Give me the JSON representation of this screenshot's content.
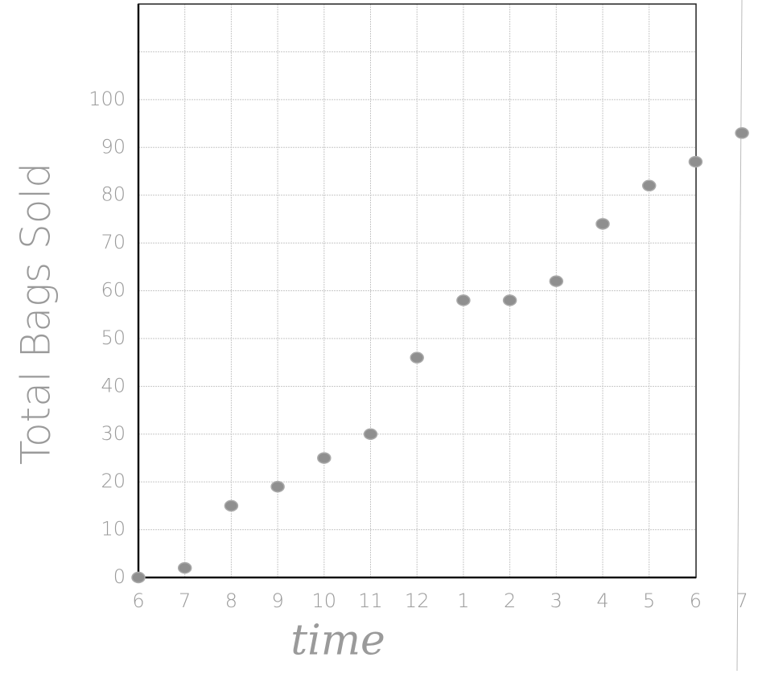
{
  "chart_data": {
    "type": "scatter",
    "x_label": "time",
    "y_label": "Total Bags Sold",
    "categories": [
      "6",
      "7",
      "8",
      "9",
      "10",
      "11",
      "12",
      "1",
      "2",
      "3",
      "4",
      "5",
      "6",
      "7"
    ],
    "values": [
      0,
      2,
      15,
      19,
      25,
      30,
      46,
      58,
      58,
      62,
      74,
      82,
      87,
      93
    ],
    "color": "#8f8f8f",
    "ylim": [
      0,
      120
    ],
    "yticks": [
      0,
      10,
      20,
      30,
      40,
      50,
      60,
      70,
      80,
      90,
      100
    ],
    "grid": true
  }
}
